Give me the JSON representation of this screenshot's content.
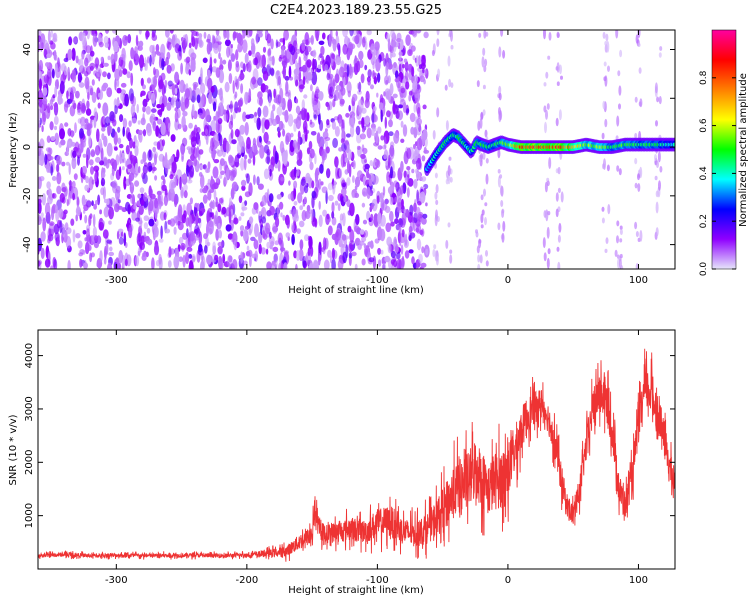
{
  "title": "C2E4.2023.189.23.55.G25",
  "colorbar": {
    "label": "Normalized spectral amplitude",
    "ticks": [
      0.0,
      0.2,
      0.4,
      0.6,
      0.8
    ],
    "tick_labels": [
      "0.0",
      "0.2",
      "0.4",
      "0.6",
      "0.8"
    ],
    "range": [
      0,
      1
    ],
    "colors": [
      "#e6e6fa",
      "#8f00ff",
      "#0000ff",
      "#00ffff",
      "#00ff00",
      "#ffff00",
      "#ff7f00",
      "#ff0000",
      "#ff00a0"
    ]
  },
  "chart_data": [
    {
      "type": "heatmap",
      "title": "C2E4.2023.189.23.55.G25",
      "xlabel": "Height of straight line (km)",
      "ylabel": "Frequency (Hz)",
      "xlim": [
        -360,
        128
      ],
      "ylim": [
        -50,
        48
      ],
      "xticks": [
        -300,
        -200,
        -100,
        0,
        100
      ],
      "xtick_labels": [
        "-300",
        "-200",
        "-100",
        "0",
        "100"
      ],
      "yticks": [
        -40,
        -20,
        0,
        20,
        40
      ],
      "ytick_labels": [
        "-40",
        "-20",
        "0",
        "20",
        "40"
      ],
      "colorbar_label": "Normalized spectral amplitude",
      "noise_region_x": [
        -360,
        -62
      ],
      "noise_level": 0.15,
      "signal_track": {
        "x": [
          -62,
          -55,
          -48,
          -42,
          -38,
          -33,
          -28,
          -24,
          -20,
          -15,
          -10,
          -5,
          0,
          10,
          20,
          30,
          40,
          50,
          60,
          70,
          80,
          90,
          100,
          110,
          120,
          128
        ],
        "y": [
          -9,
          -3,
          2,
          5,
          4,
          1,
          -2,
          2,
          1,
          0,
          1,
          2,
          1,
          0,
          0,
          0,
          0,
          0,
          1,
          0,
          0,
          1,
          1,
          1,
          1,
          1
        ],
        "amplitude": [
          0.35,
          0.45,
          0.5,
          0.45,
          0.5,
          0.45,
          0.45,
          0.5,
          0.5,
          0.5,
          0.5,
          0.55,
          0.55,
          0.85,
          0.9,
          0.85,
          0.9,
          0.75,
          0.6,
          0.6,
          0.5,
          0.55,
          0.5,
          0.5,
          0.45,
          0.4
        ]
      },
      "grid": false
    },
    {
      "type": "line",
      "xlabel": "Height of straight line (km)",
      "ylabel": "SNR (10 * v/v)",
      "xlim": [
        -360,
        128
      ],
      "ylim": [
        0,
        4480
      ],
      "xticks": [
        -300,
        -200,
        -100,
        0,
        100
      ],
      "xtick_labels": [
        "-300",
        "-200",
        "-100",
        "0",
        "100"
      ],
      "yticks": [
        1000,
        2000,
        3000,
        4000
      ],
      "ytick_labels": [
        "1000",
        "2000",
        "3000",
        "4000"
      ],
      "series": [
        {
          "color": "#ee3333",
          "x": [
            -360,
            -340,
            -320,
            -300,
            -280,
            -260,
            -240,
            -220,
            -200,
            -180,
            -170,
            -160,
            -150,
            -148,
            -145,
            -140,
            -130,
            -120,
            -110,
            -100,
            -90,
            -80,
            -70,
            -60,
            -50,
            -40,
            -30,
            -25,
            -20,
            -15,
            -10,
            -5,
            0,
            5,
            10,
            15,
            20,
            25,
            30,
            35,
            40,
            45,
            50,
            55,
            60,
            65,
            70,
            75,
            80,
            85,
            90,
            95,
            100,
            105,
            110,
            115,
            120,
            125,
            128
          ],
          "y": [
            250,
            270,
            250,
            260,
            250,
            255,
            260,
            250,
            260,
            300,
            330,
            500,
            650,
            1150,
            750,
            650,
            700,
            750,
            700,
            850,
            900,
            700,
            650,
            800,
            1100,
            1500,
            1650,
            1900,
            1700,
            1500,
            1650,
            1700,
            1850,
            2200,
            2600,
            2900,
            3000,
            3100,
            2900,
            2500,
            1800,
            1200,
            1000,
            1500,
            2300,
            3000,
            3300,
            3200,
            2600,
            1500,
            1200,
            1700,
            2700,
            3400,
            3300,
            2900,
            2400,
            1800,
            1600
          ],
          "noise_amplitude": [
            80,
            80,
            80,
            80,
            80,
            80,
            80,
            80,
            80,
            150,
            200,
            300,
            350,
            400,
            350,
            350,
            400,
            450,
            450,
            550,
            600,
            500,
            500,
            600,
            800,
            1000,
            1100,
            1200,
            1100,
            1000,
            1100,
            1100,
            1100,
            900,
            800,
            700,
            600,
            600,
            600,
            600,
            600,
            500,
            400,
            500,
            600,
            700,
            800,
            800,
            700,
            600,
            500,
            600,
            700,
            800,
            800,
            700,
            700,
            600,
            600
          ]
        }
      ],
      "grid": false
    }
  ]
}
